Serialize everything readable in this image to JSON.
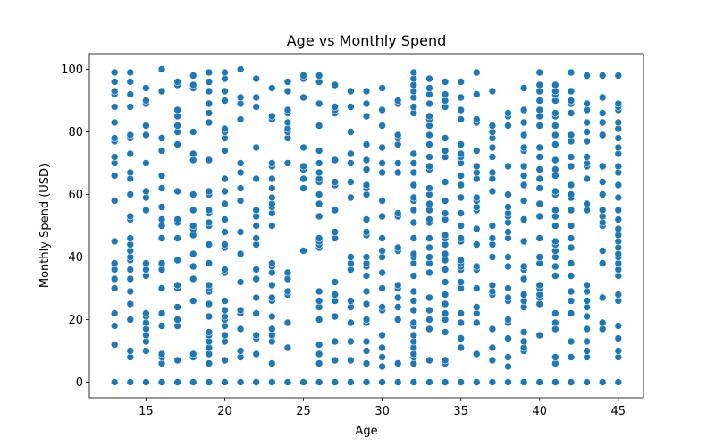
{
  "chart_data": {
    "type": "scatter",
    "title": "Age vs Monthly Spend",
    "xlabel": "Age",
    "ylabel": "Monthly Spend (USD)",
    "xlim": [
      11.4,
      46.6
    ],
    "ylim": [
      -5,
      105
    ],
    "xticks": [
      15,
      20,
      25,
      30,
      35,
      40,
      45
    ],
    "yticks": [
      0,
      20,
      40,
      60,
      80,
      100
    ],
    "grid": false,
    "legend": "none",
    "marker_color": "#1f77b4",
    "points_by_age": {
      "13": [
        0,
        12,
        18,
        22,
        30,
        33,
        36,
        38,
        45,
        58,
        66,
        70,
        72,
        77,
        78,
        83,
        88,
        92,
        93,
        96,
        99
      ],
      "14": [
        0,
        8,
        10,
        20,
        25,
        29,
        33,
        36,
        39,
        40,
        42,
        44,
        46,
        52,
        53,
        60,
        65,
        67,
        73,
        78,
        79,
        88,
        92,
        96,
        99
      ],
      "15": [
        0,
        10,
        13,
        15,
        17,
        19,
        21,
        22,
        34,
        36,
        38,
        55,
        59,
        61,
        70,
        79,
        82,
        89,
        90,
        94
      ],
      "16": [
        0,
        6,
        8,
        9,
        18,
        22,
        30,
        36,
        38,
        46,
        50,
        52,
        56,
        62,
        66,
        74,
        78,
        93,
        100
      ],
      "17": [
        0,
        7,
        18,
        20,
        24,
        30,
        31,
        39,
        46,
        51,
        52,
        61,
        76,
        80,
        82,
        85,
        87,
        95,
        96
      ],
      "18": [
        0,
        8,
        9,
        26,
        33,
        37,
        41,
        47,
        49,
        50,
        55,
        60,
        71,
        73,
        80,
        94,
        95,
        98
      ],
      "19": [
        0,
        6,
        9,
        11,
        13,
        15,
        16,
        21,
        25,
        29,
        30,
        31,
        38,
        44,
        50,
        51,
        54,
        55,
        60,
        61,
        71,
        83,
        86,
        89,
        93,
        96,
        99
      ],
      "20": [
        0,
        7,
        13,
        15,
        18,
        20,
        21,
        23,
        26,
        35,
        36,
        43,
        44,
        48,
        52,
        57,
        61,
        65,
        74,
        78,
        80,
        81,
        90,
        93,
        97,
        99
      ],
      "21": [
        0,
        8,
        10,
        17,
        22,
        23,
        32,
        41,
        48,
        58,
        62,
        67,
        70,
        84,
        89,
        91,
        100
      ],
      "22": [
        0,
        9,
        14,
        15,
        22,
        27,
        33,
        36,
        44,
        46,
        50,
        53,
        55,
        65,
        75,
        88,
        91,
        97
      ],
      "23": [
        0,
        6,
        13,
        15,
        17,
        21,
        26,
        27,
        31,
        35,
        37,
        38,
        50,
        54,
        56,
        57,
        59,
        62,
        65,
        69,
        70,
        84,
        85,
        94
      ],
      "24": [
        0,
        11,
        19,
        28,
        29,
        33,
        35,
        70,
        78,
        80,
        81,
        83,
        86,
        87,
        93,
        96
      ],
      "25": [
        0,
        42,
        62,
        65,
        68,
        69,
        75,
        91,
        97,
        98
      ],
      "26": [
        0,
        6,
        9,
        12,
        20,
        24,
        26,
        29,
        43,
        44,
        45,
        46,
        53,
        57,
        60,
        64,
        65,
        67,
        70,
        74,
        82,
        89,
        96,
        98
      ],
      "27": [
        0,
        7,
        13,
        21,
        26,
        28,
        32,
        46,
        48,
        55,
        63,
        64,
        71,
        86,
        87,
        88,
        95
      ],
      "28": [
        0,
        7,
        13,
        19,
        24,
        26,
        36,
        38,
        40,
        59,
        64,
        70,
        73,
        80,
        88,
        93
      ],
      "29": [
        0,
        6,
        10,
        13,
        19,
        20,
        25,
        29,
        34,
        37,
        38,
        40,
        47,
        48,
        52,
        60,
        62,
        63,
        68,
        71,
        76,
        85,
        89,
        93
      ],
      "30": [
        0,
        5,
        8,
        11,
        15,
        23,
        24,
        30,
        35,
        40,
        42,
        46,
        53,
        58,
        67,
        70,
        75,
        82,
        87,
        94
      ],
      "31": [
        0,
        6,
        20,
        24,
        27,
        30,
        31,
        42,
        43,
        53,
        54,
        67,
        70,
        76,
        78,
        79,
        89,
        90
      ],
      "32": [
        0,
        6,
        8,
        9,
        11,
        13,
        15,
        18,
        19,
        23,
        26,
        29,
        34,
        38,
        40,
        41,
        46,
        51,
        55,
        58,
        59,
        63,
        67,
        70,
        73,
        86,
        88,
        91,
        93,
        95,
        97,
        99
      ],
      "33": [
        0,
        7,
        17,
        20,
        23,
        27,
        35,
        38,
        40,
        43,
        46,
        51,
        52,
        55,
        57,
        60,
        62,
        68,
        69,
        72,
        76,
        79,
        82,
        84,
        85,
        89,
        92,
        94,
        97
      ],
      "34": [
        0,
        6,
        7,
        16,
        20,
        22,
        25,
        28,
        32,
        36,
        39,
        41,
        44,
        46,
        47,
        52,
        54,
        58,
        64,
        72,
        74,
        78,
        88,
        90,
        92,
        96
      ],
      "35": [
        0,
        11,
        14,
        19,
        22,
        30,
        32,
        36,
        37,
        38,
        39,
        45,
        46,
        50,
        54,
        59,
        63,
        66,
        70,
        72,
        73,
        76,
        84,
        87,
        91,
        96
      ],
      "36": [
        0,
        9,
        19,
        22,
        24,
        30,
        36,
        37,
        44,
        49,
        55,
        56,
        58,
        59,
        65,
        67,
        69,
        74,
        83,
        84,
        92,
        99
      ],
      "37": [
        0,
        7,
        11,
        17,
        28,
        29,
        31,
        40,
        44,
        46,
        50,
        61,
        65,
        67,
        72,
        75,
        78,
        80,
        82,
        93
      ],
      "38": [
        0,
        5,
        8,
        14,
        19,
        20,
        26,
        27,
        30,
        37,
        40,
        46,
        48,
        51,
        53,
        54,
        56,
        60,
        69,
        82,
        85,
        86
      ],
      "39": [
        0,
        10,
        11,
        13,
        16,
        24,
        26,
        28,
        33,
        36,
        37,
        45,
        52,
        58,
        63,
        66,
        69,
        74,
        75,
        79,
        83,
        87,
        94
      ],
      "40": [
        0,
        15,
        25,
        27,
        28,
        30,
        31,
        38,
        40,
        46,
        53,
        57,
        62,
        65,
        68,
        72,
        75,
        82,
        85,
        87,
        90,
        93,
        95,
        99
      ],
      "41": [
        0,
        6,
        8,
        17,
        19,
        22,
        34,
        37,
        40,
        42,
        44,
        45,
        50,
        53,
        55,
        60,
        61,
        66,
        68,
        71,
        76,
        79,
        82,
        85,
        86,
        90,
        92,
        93,
        95
      ],
      "42": [
        0,
        8,
        13,
        22,
        26,
        29,
        34,
        38,
        43,
        46,
        50,
        55,
        59,
        60,
        63,
        69,
        72,
        77,
        79,
        86,
        89,
        90,
        93,
        99
      ],
      "43": [
        0,
        8,
        10,
        13,
        17,
        21,
        24,
        26,
        29,
        31,
        55,
        57,
        65,
        69,
        70,
        72,
        77,
        80,
        83,
        87,
        89,
        98
      ],
      "44": [
        0,
        17,
        19,
        27,
        38,
        42,
        50,
        51,
        53,
        55,
        60,
        64,
        69,
        79,
        83,
        86,
        91,
        98
      ],
      "45": [
        0,
        8,
        10,
        14,
        18,
        26,
        28,
        34,
        36,
        38,
        40,
        41,
        43,
        45,
        47,
        49,
        52,
        55,
        59,
        63,
        67,
        69,
        73,
        75,
        78,
        81,
        83,
        87,
        88,
        89,
        98
      ]
    }
  }
}
